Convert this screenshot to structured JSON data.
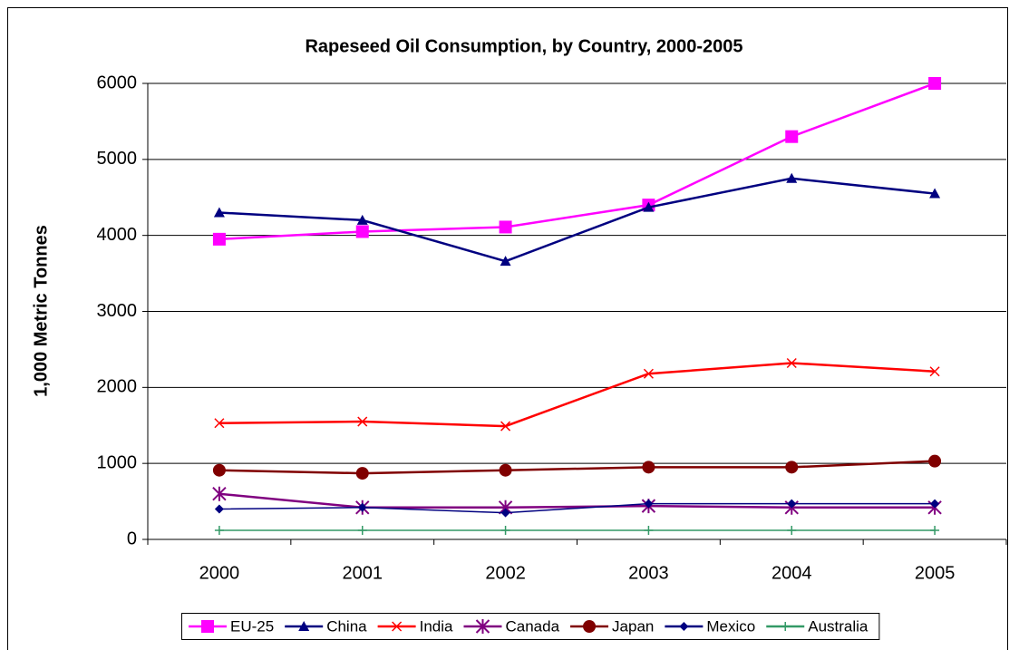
{
  "chart_data": {
    "type": "line",
    "title": "Rapeseed Oil Consumption, by Country, 2000-2005",
    "y_label": "1,000 Metric Tonnes",
    "categories": [
      "2000",
      "2001",
      "2002",
      "2003",
      "2004",
      "2005"
    ],
    "ylim": [
      0,
      6000
    ],
    "yticks": [
      0,
      1000,
      2000,
      3000,
      4000,
      5000,
      6000
    ],
    "grid": true,
    "legend": "bottom",
    "series": [
      {
        "name": "EU-25",
        "color": "#ff00ff",
        "marker": "square",
        "values": [
          3950,
          4050,
          4110,
          4400,
          5300,
          6000
        ]
      },
      {
        "name": "China",
        "color": "#000080",
        "marker": "triangle",
        "values": [
          4300,
          4200,
          3660,
          4370,
          4750,
          4550
        ]
      },
      {
        "name": "India",
        "color": "#ff0000",
        "marker": "x",
        "values": [
          1530,
          1550,
          1490,
          2180,
          2320,
          2210
        ]
      },
      {
        "name": "Canada",
        "color": "#800080",
        "marker": "star",
        "values": [
          600,
          420,
          420,
          440,
          420,
          420
        ]
      },
      {
        "name": "Japan",
        "color": "#800000",
        "marker": "circle",
        "values": [
          910,
          870,
          910,
          950,
          950,
          1030
        ]
      },
      {
        "name": "Mexico",
        "color": "#000080",
        "marker": "diamond",
        "values": [
          400,
          420,
          350,
          470,
          470,
          470
        ]
      },
      {
        "name": "Australia",
        "color": "#339966",
        "marker": "plus",
        "values": [
          120,
          120,
          120,
          120,
          120,
          120
        ]
      }
    ]
  }
}
